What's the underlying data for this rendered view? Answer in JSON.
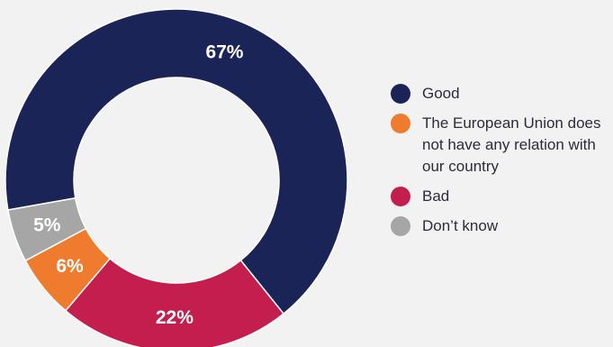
{
  "chart_data": {
    "type": "pie",
    "donut": true,
    "categories": [
      "Good",
      "The European Union does not have any relation with our country",
      "Bad",
      "Don’t know"
    ],
    "values": [
      67,
      6,
      22,
      5
    ],
    "value_labels": [
      "67%",
      "6%",
      "22%",
      "5%"
    ],
    "colors": [
      "#1b2456",
      "#ef7b2e",
      "#c41e4e",
      "#a6a6a6"
    ],
    "legend_order": [
      0,
      1,
      2,
      3
    ],
    "legend_position": "right",
    "title": "",
    "xlabel": "",
    "ylabel": ""
  }
}
